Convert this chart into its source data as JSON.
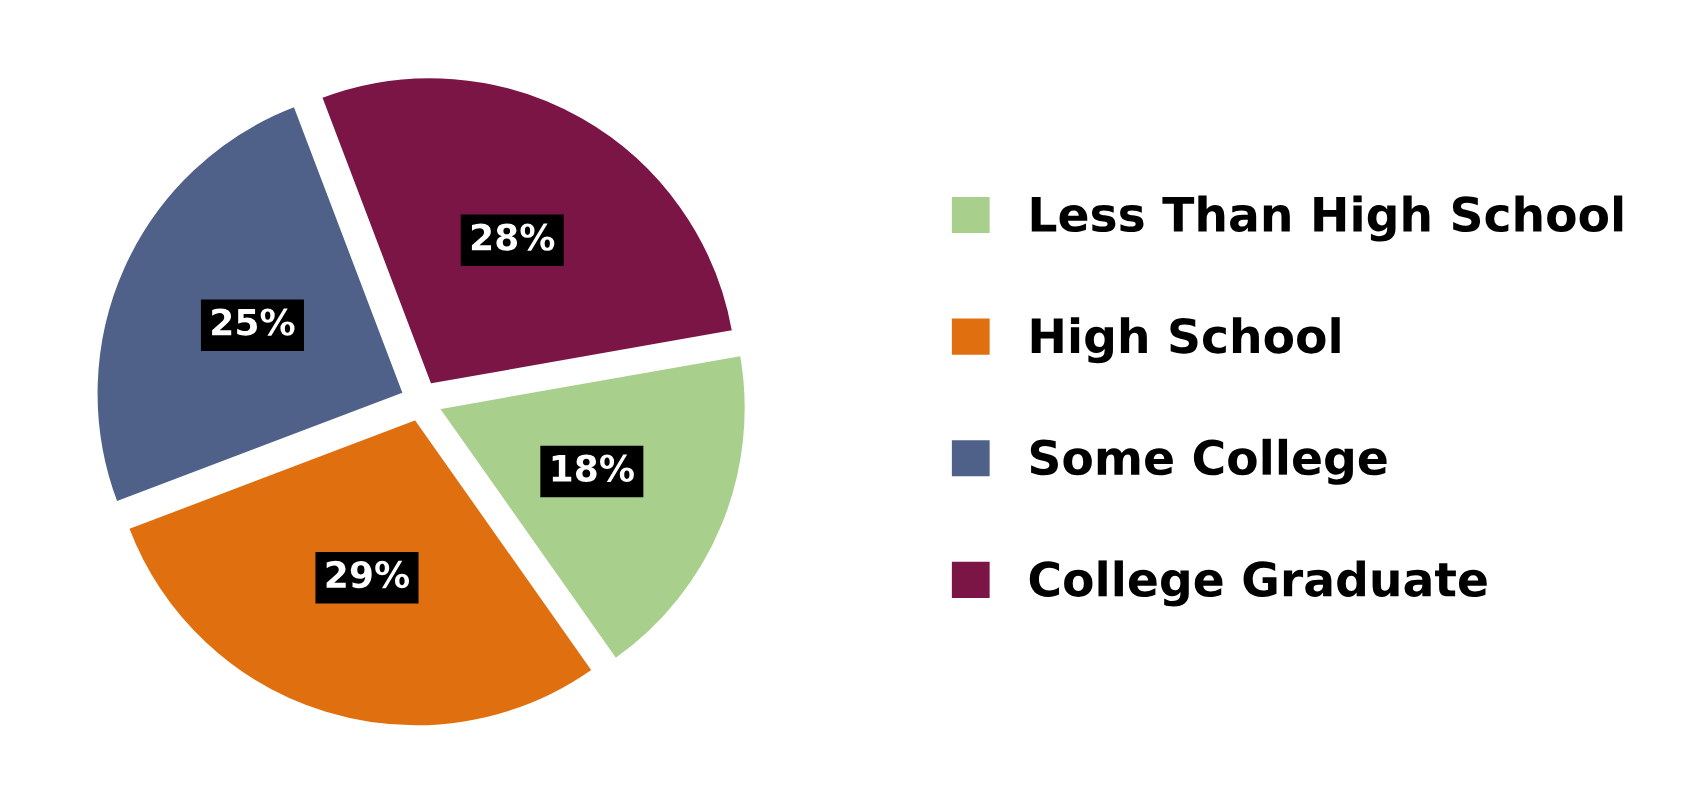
{
  "chart_data": {
    "type": "pie",
    "categories": [
      "Less Than High School",
      "High School",
      "Some College",
      "College Graduate"
    ],
    "values": [
      18,
      29,
      25,
      28
    ],
    "colors": [
      "#a9cf8c",
      "#e0700f",
      "#4f6189",
      "#7a1546"
    ],
    "value_labels": [
      "18%",
      "29%",
      "25%",
      "28%"
    ],
    "legend": "right"
  }
}
